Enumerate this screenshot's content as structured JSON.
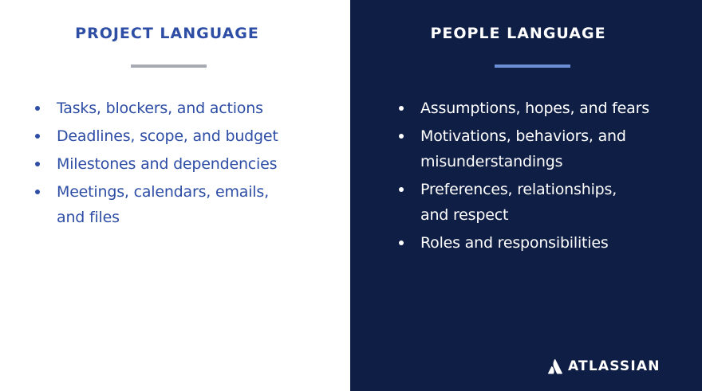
{
  "left_panel": {
    "heading": "PROJECT LANGUAGE",
    "items": [
      "Tasks, blockers, and actions",
      "Deadlines, scope, and budget",
      "Milestones and dependencies",
      "Meetings, calendars, emails, and files"
    ]
  },
  "right_panel": {
    "heading": "PEOPLE LANGUAGE",
    "items": [
      "Assumptions, hopes, and fears",
      "Motivations, behaviors, and misunderstandings",
      "Preferences, relationships, and respect",
      "Roles and responsibilities"
    ]
  },
  "logo": {
    "text": "ATLASSIAN",
    "icon": "atlassian-logo-icon"
  },
  "colors": {
    "left_background": "#ffffff",
    "right_background": "#0f1e45",
    "left_text": "#2e4ea6",
    "right_text": "#ffffff",
    "left_rule": "#a8abb3",
    "right_rule": "#6d8fd6"
  }
}
